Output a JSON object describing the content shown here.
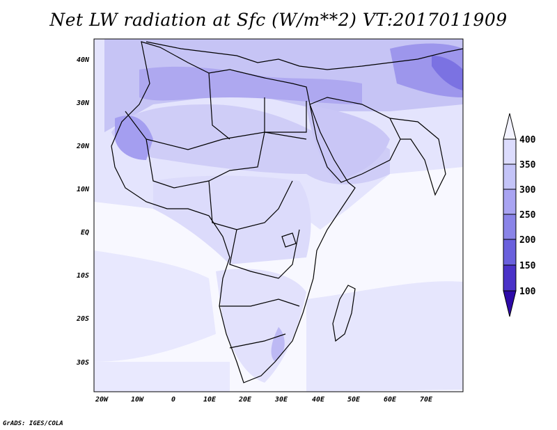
{
  "title": "Net LW radiation at Sfc (W/m**2) VT:2017011909",
  "credit": "GrADS: IGES/COLA",
  "map": {
    "lon_range": [
      -25,
      80
    ],
    "lat_range": [
      -37,
      45
    ],
    "lat_ticks": [
      "40N",
      "30N",
      "20N",
      "10N",
      "EQ",
      "10S",
      "20S",
      "30S"
    ],
    "lon_ticks": [
      "20W",
      "10W",
      "0",
      "10E",
      "20E",
      "30E",
      "40E",
      "50E",
      "60E",
      "70E"
    ]
  },
  "colorbar": {
    "levels": [
      "400",
      "350",
      "300",
      "250",
      "200",
      "150",
      "100"
    ],
    "colors": [
      "#f3f3ff",
      "#dcdcfd",
      "#c4c4f8",
      "#a9a4f2",
      "#8a84e8",
      "#6a60dd",
      "#4a32c8",
      "#2d0aa8"
    ]
  }
}
